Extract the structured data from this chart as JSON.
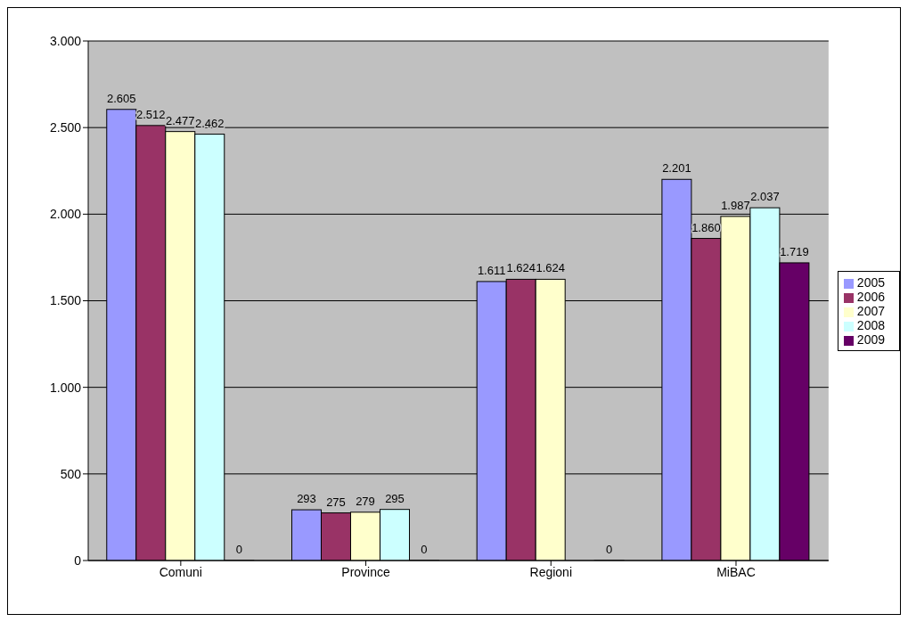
{
  "chart_data": {
    "type": "bar",
    "categories": [
      "Comuni",
      "Province",
      "Regioni",
      "MiBAC"
    ],
    "series": [
      {
        "name": "2005",
        "color": "#9999ff",
        "values": [
          2605,
          293,
          1611,
          2201
        ],
        "value_labels": [
          "2.605",
          "293",
          "1.611",
          "2.201"
        ]
      },
      {
        "name": "2006",
        "color": "#993366",
        "values": [
          2512,
          275,
          1624,
          1860
        ],
        "value_labels": [
          "2.512",
          "275",
          "1.624",
          "1.860"
        ]
      },
      {
        "name": "2007",
        "color": "#ffffcc",
        "values": [
          2477,
          279,
          1624,
          1987
        ],
        "value_labels": [
          "2.477",
          "279",
          "1.624",
          "1.987"
        ]
      },
      {
        "name": "2008",
        "color": "#ccffff",
        "values": [
          2462,
          295,
          null,
          2037
        ],
        "value_labels": [
          "2.462",
          "295",
          null,
          "2.037"
        ]
      },
      {
        "name": "2009",
        "color": "#660066",
        "values": [
          0,
          0,
          0,
          1719
        ],
        "value_labels": [
          "0",
          "0",
          "0",
          "1.719"
        ]
      }
    ],
    "ylim": [
      0,
      3000
    ],
    "yticks": [
      {
        "value": 0,
        "label": "0"
      },
      {
        "value": 500,
        "label": "500"
      },
      {
        "value": 1000,
        "label": "1.000"
      },
      {
        "value": 1500,
        "label": "1.500"
      },
      {
        "value": 2000,
        "label": "2.000"
      },
      {
        "value": 2500,
        "label": "2.500"
      },
      {
        "value": 3000,
        "label": "3.000"
      }
    ],
    "grid": "y",
    "legend": "right"
  }
}
